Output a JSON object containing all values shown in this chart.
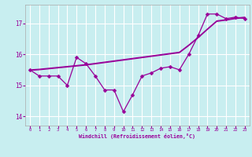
{
  "xlabel": "Windchill (Refroidissement éolien,°C)",
  "background_color": "#c8eef0",
  "line_color": "#990099",
  "grid_color": "#ffffff",
  "trend1": [
    15.5,
    15.52,
    15.55,
    15.58,
    15.61,
    15.64,
    15.67,
    15.71,
    15.75,
    15.79,
    15.83,
    15.87,
    15.91,
    15.95,
    15.99,
    16.03,
    16.07,
    16.3,
    16.55,
    16.82,
    17.08,
    17.12,
    17.17,
    17.2
  ],
  "trend2": [
    15.48,
    15.5,
    15.53,
    15.56,
    15.59,
    15.62,
    15.65,
    15.69,
    15.73,
    15.77,
    15.81,
    15.85,
    15.89,
    15.93,
    15.97,
    16.01,
    16.05,
    16.28,
    16.53,
    16.8,
    17.06,
    17.1,
    17.15,
    17.18
  ],
  "main_y": [
    15.5,
    15.3,
    15.3,
    15.3,
    15.0,
    15.9,
    15.7,
    15.3,
    14.85,
    14.85,
    14.15,
    14.7,
    15.3,
    15.4,
    15.55,
    15.6,
    15.5,
    16.0,
    16.6,
    17.3,
    17.3,
    17.15,
    17.2,
    17.15
  ],
  "ylim": [
    13.7,
    17.6
  ],
  "yticks": [
    14,
    15,
    16,
    17
  ],
  "xticks": [
    0,
    1,
    2,
    3,
    4,
    5,
    6,
    7,
    8,
    9,
    10,
    11,
    12,
    13,
    14,
    15,
    16,
    17,
    18,
    19,
    20,
    21,
    22,
    23
  ],
  "markersize": 2.5
}
